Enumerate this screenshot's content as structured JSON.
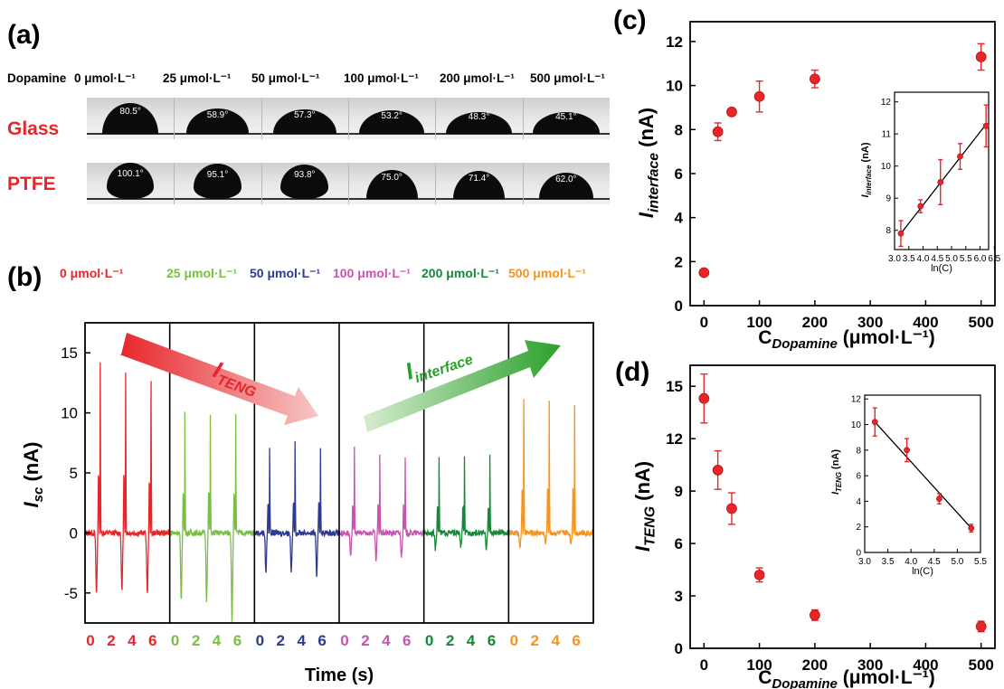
{
  "panel_a": {
    "label": "(a)",
    "header_label": "Dopamine",
    "concentrations": [
      "0 μmol·L⁻¹",
      "25 μmol·L⁻¹",
      "50 μmol·L⁻¹",
      "100 μmol·L⁻¹",
      "200 μmol·L⁻¹",
      "500 μmol·L⁻¹"
    ],
    "rows": [
      {
        "name": "Glass",
        "angles": [
          "80.5°",
          "58.9°",
          "57.3°",
          "53.2°",
          "48.3°",
          "45.1°"
        ],
        "values": [
          80.5,
          58.9,
          57.3,
          53.2,
          48.3,
          45.1
        ]
      },
      {
        "name": "PTFE",
        "angles": [
          "100.1°",
          "95.1°",
          "93.8°",
          "75.0°",
          "71.4°",
          "62.0°"
        ],
        "values": [
          100.1,
          95.1,
          93.8,
          75.0,
          71.4,
          62.0
        ]
      }
    ]
  },
  "chart_data": [
    {
      "panel": "(b)",
      "type": "line",
      "ylabel": "Isc (nA)",
      "xlabel": "Time (s)",
      "ylim": [
        -7.5,
        17.5
      ],
      "yticks": [
        "15",
        "10",
        "5",
        "0",
        "-5"
      ],
      "xticks": [
        "0",
        "2",
        "4",
        "6"
      ],
      "series": [
        {
          "name": "0 μmol·L⁻¹",
          "color": "#e8262a",
          "peaks_pos": [
            15.5,
            14.6,
            13.5
          ],
          "peaks_neg": [
            -5.1,
            -4.8,
            -5.1
          ]
        },
        {
          "name": "25 μmol·L⁻¹",
          "color": "#78c043",
          "peaks_pos": [
            10.8,
            10.6,
            10.4
          ],
          "peaks_neg": [
            -5.7,
            -5.7,
            -7.4
          ]
        },
        {
          "name": "50 μmol·L⁻¹",
          "color": "#2e3a92",
          "peaks_pos": [
            7.8,
            8.0,
            7.7
          ],
          "peaks_neg": [
            -3.3,
            -3.2,
            -3.6
          ]
        },
        {
          "name": "100 μmol·L⁻¹",
          "color": "#c953b0",
          "peaks_pos": [
            7.6,
            7.1,
            6.7
          ],
          "peaks_neg": [
            -2.1,
            -2.3,
            -2.0
          ]
        },
        {
          "name": "200 μmol·L⁻¹",
          "color": "#17883a",
          "peaks_pos": [
            6.9,
            6.7,
            6.8
          ],
          "peaks_neg": [
            -1.3,
            -1.2,
            -1.3
          ]
        },
        {
          "name": "500 μmol·L⁻¹",
          "color": "#f7931e",
          "peaks_pos": [
            11.8,
            12.0,
            11.6
          ],
          "peaks_neg": [
            -1.1,
            -0.9,
            -0.8
          ]
        }
      ],
      "annotations": [
        {
          "text": "I",
          "sub": "TENG",
          "color": "#e8262a"
        },
        {
          "text": "I",
          "sub": "interface",
          "color": "#2ca02c"
        }
      ]
    },
    {
      "panel": "(c)",
      "type": "scatter",
      "xlabel": "C",
      "xlabel_sub": "Dopamine",
      "xlabel_unit": " (μmol·L⁻¹)",
      "ylabel": "I",
      "ylabel_sub": "interface",
      "ylabel_unit": " (nA)",
      "xlim": [
        -25,
        525
      ],
      "ylim": [
        0,
        12.9
      ],
      "xticks": [
        0,
        100,
        200,
        300,
        400,
        500
      ],
      "yticks": [
        0,
        2,
        4,
        6,
        8,
        10,
        12
      ],
      "x": [
        0,
        25,
        50,
        100,
        200,
        500
      ],
      "y": [
        1.5,
        7.9,
        8.8,
        9.5,
        10.3,
        11.3
      ],
      "err": [
        0,
        0.4,
        0.1,
        0.7,
        0.4,
        0.6
      ],
      "inset": {
        "xlabel": "ln(C)",
        "ylabel": "I",
        "ylabel_sub": "interface",
        "ylabel_unit": " (nA)",
        "xlim": [
          3.0,
          6.3
        ],
        "ylim": [
          7.4,
          12.3
        ],
        "xticks": [
          "3.0",
          "3.5",
          "4.0",
          "4.5",
          "5.0",
          "5.5",
          "6.0",
          "6.5"
        ],
        "xtick_vals": [
          3.0,
          3.5,
          4.0,
          4.5,
          5.0,
          5.5,
          6.0,
          6.5
        ],
        "yticks": [
          8,
          9,
          10,
          11,
          12
        ],
        "x": [
          3.22,
          3.91,
          4.61,
          5.3,
          6.21
        ],
        "y": [
          7.9,
          8.75,
          9.5,
          10.3,
          11.25
        ],
        "err": [
          0.4,
          0.2,
          0.7,
          0.4,
          0.65
        ],
        "fit": [
          [
            3.22,
            7.9
          ],
          [
            6.21,
            11.3
          ]
        ]
      }
    },
    {
      "panel": "(d)",
      "type": "scatter",
      "xlabel": "C",
      "xlabel_sub": "Dopamine",
      "xlabel_unit": " (μmol·L⁻¹)",
      "ylabel": "I",
      "ylabel_sub": "TENG",
      "ylabel_unit": " (nA)",
      "xlim": [
        -25,
        525
      ],
      "ylim": [
        0,
        16.2
      ],
      "xticks": [
        0,
        100,
        200,
        300,
        400,
        500
      ],
      "yticks": [
        0,
        3,
        6,
        9,
        12,
        15
      ],
      "x": [
        0,
        25,
        50,
        100,
        200,
        500
      ],
      "y": [
        14.3,
        10.2,
        8.0,
        4.2,
        1.9,
        1.25
      ],
      "err": [
        1.4,
        1.1,
        0.9,
        0.4,
        0.3,
        0.3
      ],
      "inset": {
        "xlabel": "ln(C)",
        "ylabel": "I",
        "ylabel_sub": "TENG",
        "ylabel_unit": " (nA)",
        "xlim": [
          3.0,
          5.5
        ],
        "ylim": [
          0,
          12.3
        ],
        "xticks": [
          "3.0",
          "3.5",
          "4.0",
          "4.5",
          "5.0",
          "5.5"
        ],
        "xtick_vals": [
          3.0,
          3.5,
          4.0,
          4.5,
          5.0,
          5.5
        ],
        "yticks": [
          0,
          2,
          4,
          6,
          8,
          10,
          12
        ],
        "x": [
          3.22,
          3.91,
          4.61,
          5.3
        ],
        "y": [
          10.2,
          8.0,
          4.2,
          1.9
        ],
        "err": [
          1.1,
          0.9,
          0.4,
          0.3
        ],
        "fit": [
          [
            3.22,
            10.2
          ],
          [
            5.3,
            1.9
          ]
        ]
      }
    }
  ]
}
